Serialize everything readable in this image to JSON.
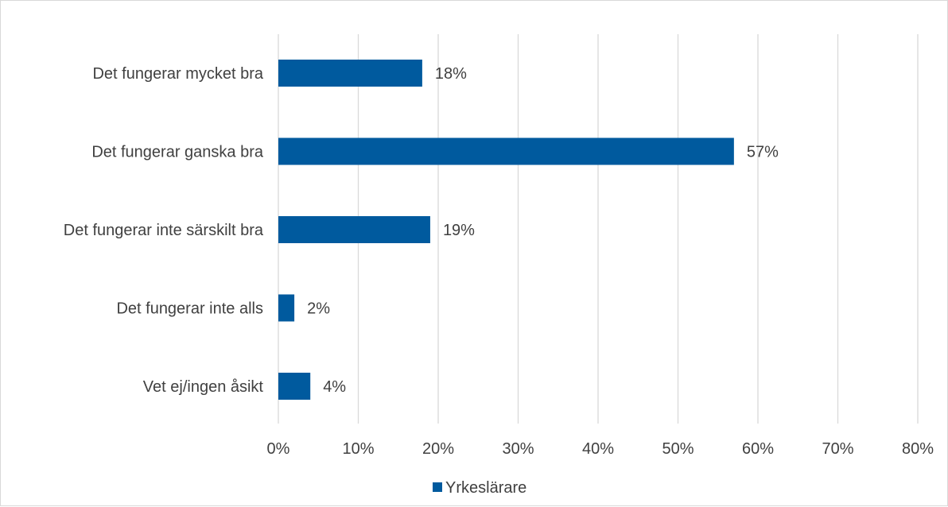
{
  "chart_data": {
    "type": "bar",
    "orientation": "horizontal",
    "categories": [
      "Det fungerar mycket bra",
      "Det fungerar ganska bra",
      "Det fungerar inte särskilt bra",
      "Det fungerar inte alls",
      "Vet ej/ingen åsikt"
    ],
    "series": [
      {
        "name": "Yrkeslärare",
        "values": [
          18,
          57,
          19,
          2,
          4
        ],
        "data_labels": [
          "18%",
          "57%",
          "19%",
          "2%",
          "4%"
        ],
        "color": "#005a9e"
      }
    ],
    "xlim": [
      0,
      80
    ],
    "x_ticks": [
      0,
      10,
      20,
      30,
      40,
      50,
      60,
      70,
      80
    ],
    "x_tick_labels": [
      "0%",
      "10%",
      "20%",
      "30%",
      "40%",
      "50%",
      "60%",
      "70%",
      "80%"
    ],
    "title": "",
    "xlabel": "",
    "ylabel": "",
    "grid": "vertical",
    "legend": "bottom-center",
    "colors": {
      "bar": "#005a9e",
      "grid": "#d9d9d9",
      "text": "#404040"
    }
  }
}
